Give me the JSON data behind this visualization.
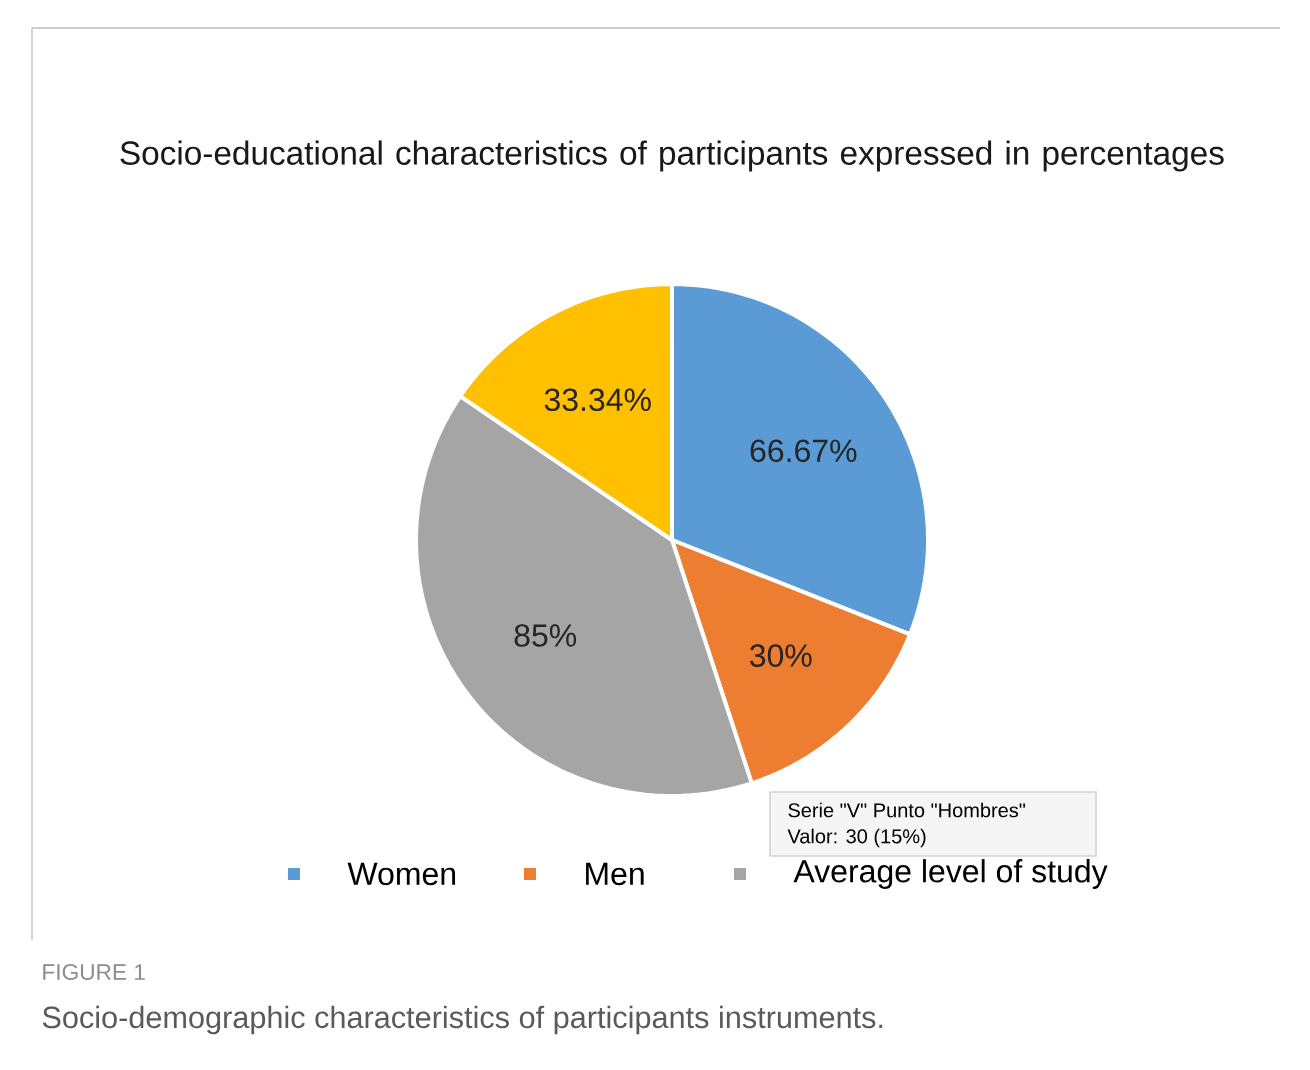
{
  "chart_data": {
    "type": "pie",
    "title": "Socio-educational characteristics of participants expressed in percentages",
    "categories": [
      "Women",
      "Men",
      "Average level of study",
      null
    ],
    "values": [
      66.67,
      30,
      85,
      33.34
    ],
    "colors": [
      "#5b9bd5",
      "#ed7d31",
      "#a5a5a5",
      "#ffc000"
    ],
    "value_labels": [
      "66.67%",
      "30%",
      "85%",
      "33.34%"
    ],
    "legend": "bottom",
    "annotations": [
      "Serie \"V\" Punto \"Hombres\"",
      "Valor: 30 (15%)",
      "FIGURE 1",
      "Socio-demographic characteristics of participants instruments."
    ]
  }
}
